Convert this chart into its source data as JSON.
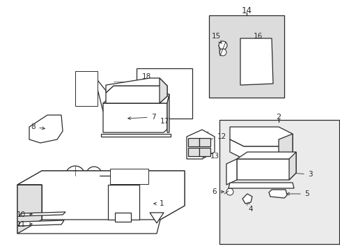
{
  "bg_color": "#ffffff",
  "line_color": "#2a2a2a",
  "shaded_gray": "#e0e0e0",
  "box14_bg": "#dcdcdc",
  "box2_bg": "#ebebeb",
  "box17_bg": "#ffffff"
}
